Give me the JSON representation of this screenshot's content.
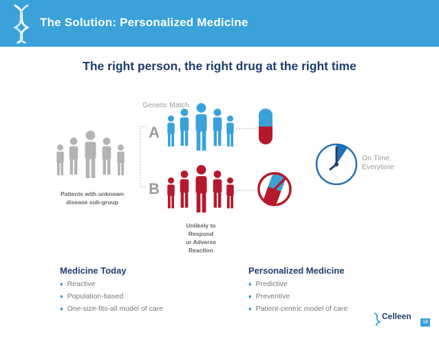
{
  "header": {
    "title": "The Solution: Personalized Medicine"
  },
  "subtitle": "The right person, the right drug at the right time",
  "diagram": {
    "genetic_match_label": "Genetic Match",
    "group_a_letter": "A",
    "group_b_letter": "B",
    "patients_label_line1": "Patients with unknown",
    "patients_label_line2": "disease sub-group",
    "unlikely_label_line1": "Unlikely to Respond",
    "unlikely_label_line2": "or Adverse Reaction",
    "on_time_line1": "On Time,",
    "on_time_line2": "Everytime"
  },
  "medicine_today": {
    "title": "Medicine Today",
    "items": [
      "Reactive",
      "Population-based",
      "One-size-fits-all model of care"
    ]
  },
  "personalized_medicine": {
    "title": "Personalized Medicine",
    "items": [
      "Predictive",
      "Preventive",
      "Patient-centric model of care"
    ]
  },
  "footer": {
    "brand": "Celleen",
    "page_number": "18"
  },
  "colors": {
    "header": "#3aa2d9",
    "navy": "#1f3c6e",
    "blue_people": "#3aa2d9",
    "red": "#b5192b",
    "gray": "#b3b3b3"
  }
}
